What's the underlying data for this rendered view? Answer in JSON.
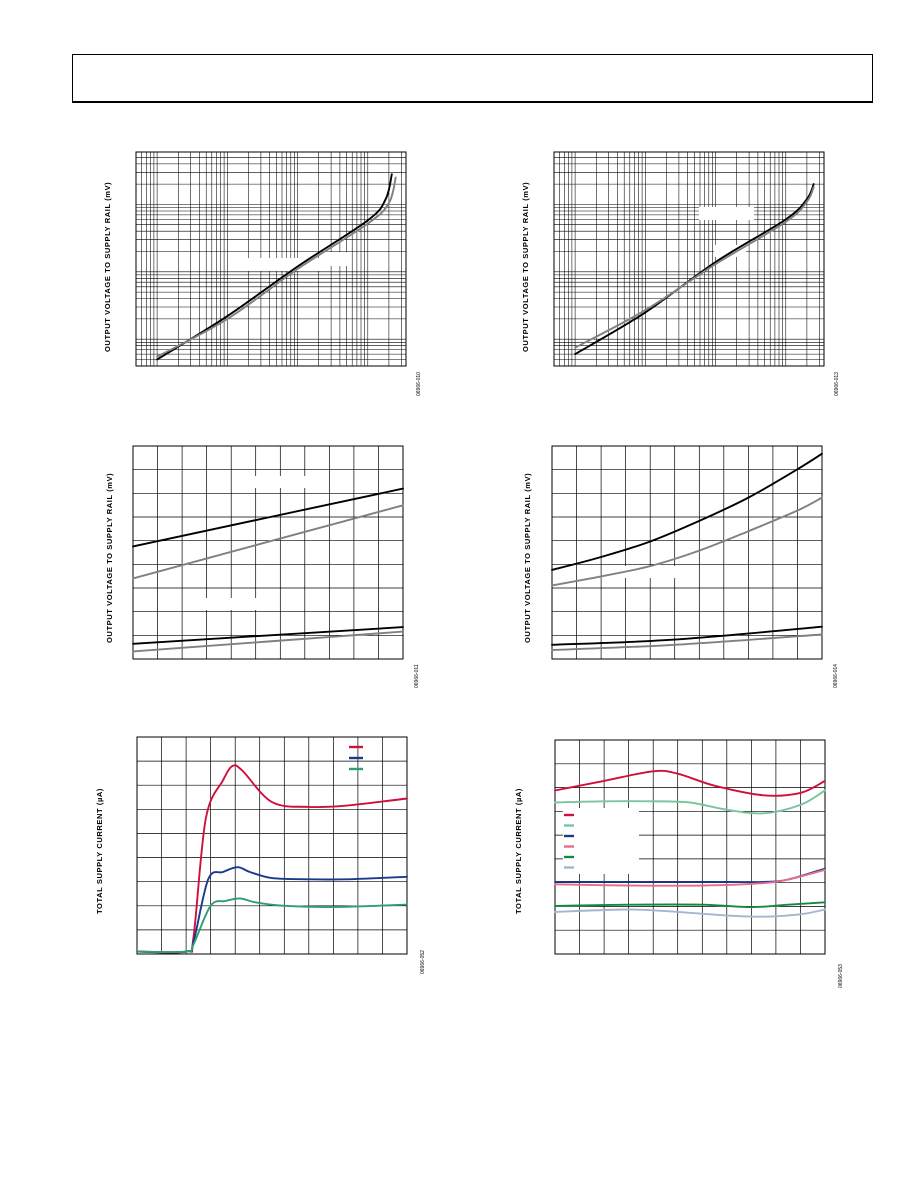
{
  "page": {
    "header": ""
  },
  "colors": {
    "black": "#000000",
    "gray": "#808080",
    "red": "#d0103a",
    "blue": "#1a3a8c",
    "green_teal": "#2e9e73",
    "pink": "#e86b8a",
    "light_green": "#7cc4a0",
    "dark_green": "#118a3c",
    "light_blue": "#a7b4cf"
  },
  "chart_data": [
    {
      "id": "chart1",
      "type": "line",
      "x_scale": "log",
      "y_scale": "log",
      "grid": true,
      "ylabel": "OUTPUT VOLTAGE TO SUPPLY RAIL (mV)",
      "figure_code": "06966-010",
      "series": [
        {
          "color": "black",
          "points": [
            [
              0.001,
              0.5
            ],
            [
              0.01,
              2.2
            ],
            [
              0.1,
              12
            ],
            [
              1,
              58
            ],
            [
              1.8,
              120
            ],
            [
              2.2,
              280
            ]
          ]
        },
        {
          "color": "gray",
          "points": [
            [
              0.001,
              0.55
            ],
            [
              0.01,
              2.0
            ],
            [
              0.1,
              11
            ],
            [
              1,
              52
            ],
            [
              2,
              105
            ],
            [
              2.5,
              250
            ]
          ]
        }
      ]
    },
    {
      "id": "chart2",
      "type": "line",
      "x_scale": "log",
      "y_scale": "log",
      "grid": true,
      "ylabel": "OUTPUT VOLTAGE TO SUPPLY RAIL (mV)",
      "figure_code": "06966-013",
      "series": [
        {
          "color": "black",
          "points": [
            [
              0.001,
              0.6
            ],
            [
              0.01,
              2.5
            ],
            [
              0.1,
              14
            ],
            [
              1,
              60
            ],
            [
              2,
              120
            ],
            [
              2.5,
              200
            ]
          ]
        },
        {
          "color": "gray",
          "points": [
            [
              0.001,
              0.75
            ],
            [
              0.01,
              2.7
            ],
            [
              0.1,
              13
            ],
            [
              1,
              55
            ],
            [
              2,
              110
            ],
            [
              2.5,
              180
            ]
          ]
        }
      ]
    },
    {
      "id": "chart3",
      "type": "line",
      "grid": true,
      "ylabel": "OUTPUT VOLTAGE TO SUPPLY RAIL (mV)",
      "figure_code": "06966-011",
      "series": [
        {
          "color": "black",
          "points": [
            [
              0,
              0.69
            ],
            [
              11,
              1.07
            ]
          ]
        },
        {
          "color": "gray",
          "points": [
            [
              0,
              0.48
            ],
            [
              11,
              0.96
            ]
          ]
        },
        {
          "color": "black",
          "points": [
            [
              0,
              0.05
            ],
            [
              11,
              0.16
            ]
          ]
        },
        {
          "color": "gray",
          "points": [
            [
              0,
              0.0
            ],
            [
              11,
              0.13
            ]
          ]
        }
      ]
    },
    {
      "id": "chart4",
      "type": "line",
      "grid": true,
      "ylabel": "OUTPUT VOLTAGE TO SUPPLY RAIL (mV)",
      "figure_code": "06966-014",
      "series": [
        {
          "color": "black",
          "points": [
            [
              0,
              0.64
            ],
            [
              2,
              0.74
            ],
            [
              4,
              0.86
            ],
            [
              6,
              1.02
            ],
            [
              8,
              1.2
            ],
            [
              10,
              1.42
            ],
            [
              11,
              1.54
            ]
          ]
        },
        {
          "color": "gray",
          "points": [
            [
              0,
              0.52
            ],
            [
              2,
              0.59
            ],
            [
              4,
              0.67
            ],
            [
              6,
              0.79
            ],
            [
              8,
              0.94
            ],
            [
              10,
              1.1
            ],
            [
              11,
              1.2
            ]
          ]
        },
        {
          "color": "black",
          "points": [
            [
              0,
              0.06
            ],
            [
              5,
              0.1
            ],
            [
              11,
              0.2
            ]
          ]
        },
        {
          "color": "gray",
          "points": [
            [
              0,
              0.02
            ],
            [
              5,
              0.06
            ],
            [
              11,
              0.14
            ]
          ]
        }
      ]
    },
    {
      "id": "chart5",
      "type": "line",
      "grid": true,
      "ylabel": "TOTAL SUPPLY CURRENT (µA)",
      "figure_code": "06966-052",
      "legend_position": "top-right",
      "series": [
        {
          "color": "red",
          "points": [
            [
              0,
              0
            ],
            [
              2,
              0
            ],
            [
              2.3,
              0.6
            ],
            [
              2.8,
              5.5
            ],
            [
              3.5,
              7.1
            ],
            [
              3.9,
              7.7
            ],
            [
              4.3,
              7.5
            ],
            [
              5.5,
              6.2
            ],
            [
              7,
              6.0
            ],
            [
              8.5,
              6.05
            ],
            [
              11,
              6.35
            ]
          ]
        },
        {
          "color": "blue",
          "points": [
            [
              0,
              0
            ],
            [
              2,
              0
            ],
            [
              2.3,
              0.4
            ],
            [
              2.9,
              3.0
            ],
            [
              3.5,
              3.3
            ],
            [
              4.1,
              3.5
            ],
            [
              4.6,
              3.3
            ],
            [
              5.5,
              3.05
            ],
            [
              7,
              3.0
            ],
            [
              8.5,
              3.0
            ],
            [
              11,
              3.1
            ]
          ]
        },
        {
          "color": "green_teal",
          "points": [
            [
              0,
              0
            ],
            [
              2,
              0
            ],
            [
              2.3,
              0.3
            ],
            [
              3,
              1.9
            ],
            [
              3.6,
              2.1
            ],
            [
              4.2,
              2.2
            ],
            [
              4.8,
              2.05
            ],
            [
              6,
              1.9
            ],
            [
              8,
              1.85
            ],
            [
              11,
              1.95
            ]
          ]
        }
      ]
    },
    {
      "id": "chart6",
      "type": "line",
      "grid": true,
      "ylabel": "TOTAL SUPPLY CURRENT (µA)",
      "figure_code": "06966-053",
      "legend_position": "left",
      "series": [
        {
          "color": "red",
          "points": [
            [
              0,
              6.8
            ],
            [
              2,
              7.2
            ],
            [
              4,
              7.6
            ],
            [
              5,
              7.5
            ],
            [
              6.5,
              7.0
            ],
            [
              8.5,
              6.6
            ],
            [
              10,
              6.7
            ],
            [
              11,
              7.2
            ]
          ]
        },
        {
          "color": "light_green",
          "points": [
            [
              0,
              6.3
            ],
            [
              2,
              6.35
            ],
            [
              4,
              6.35
            ],
            [
              5.5,
              6.3
            ],
            [
              7,
              6.0
            ],
            [
              8.5,
              5.85
            ],
            [
              10,
              6.2
            ],
            [
              11,
              6.8
            ]
          ]
        },
        {
          "color": "blue",
          "points": [
            [
              0,
              3.0
            ],
            [
              3,
              3.0
            ],
            [
              6,
              3.0
            ],
            [
              8.5,
              3.0
            ],
            [
              9.5,
              3.1
            ],
            [
              11,
              3.55
            ]
          ]
        },
        {
          "color": "pink",
          "points": [
            [
              0,
              2.9
            ],
            [
              3,
              2.85
            ],
            [
              6,
              2.85
            ],
            [
              8.5,
              2.95
            ],
            [
              9.5,
              3.1
            ],
            [
              11,
              3.5
            ]
          ]
        },
        {
          "color": "dark_green",
          "points": [
            [
              0,
              2.0
            ],
            [
              3,
              2.05
            ],
            [
              6,
              2.05
            ],
            [
              8,
              1.95
            ],
            [
              9.5,
              2.05
            ],
            [
              11,
              2.15
            ]
          ]
        },
        {
          "color": "light_blue",
          "points": [
            [
              0,
              1.75
            ],
            [
              3,
              1.85
            ],
            [
              5,
              1.75
            ],
            [
              7,
              1.6
            ],
            [
              8.5,
              1.55
            ],
            [
              10,
              1.65
            ],
            [
              11,
              1.85
            ]
          ]
        }
      ]
    }
  ]
}
